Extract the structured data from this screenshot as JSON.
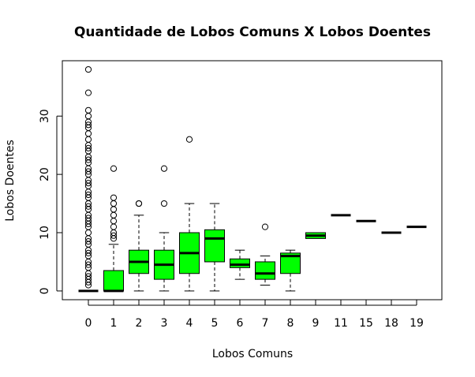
{
  "chart_data": {
    "type": "boxplot",
    "title": "Quantidade de Lobos Comuns X Lobos Doentes",
    "xlabel": "Lobos Comuns",
    "ylabel": "Lobos Doentes",
    "categories": [
      "0",
      "1",
      "2",
      "3",
      "4",
      "5",
      "6",
      "7",
      "8",
      "9",
      "11",
      "15",
      "18",
      "19"
    ],
    "ylim": [
      -1.5,
      39.5
    ],
    "yticks": [
      0,
      10,
      20,
      30
    ],
    "box_color": "#00ff00",
    "boxes": [
      {
        "category": "0",
        "q1": 0,
        "median": 0,
        "q3": 0,
        "whisker_low": 0,
        "whisker_high": 0,
        "outliers": [
          1,
          1.5,
          2,
          2.5,
          3,
          4,
          4.5,
          5,
          6,
          6.5,
          7,
          8,
          8.5,
          9,
          10,
          11,
          11.5,
          12,
          12.5,
          13,
          14,
          14.5,
          15,
          16,
          16.5,
          17,
          18,
          18.5,
          19,
          20,
          20.5,
          21,
          22,
          22.5,
          23,
          24,
          24.5,
          25,
          26,
          27,
          28,
          28.5,
          29,
          30,
          31,
          34,
          38
        ]
      },
      {
        "category": "1",
        "q1": 0,
        "median": 0,
        "q3": 3.5,
        "whisker_low": 0,
        "whisker_high": 8,
        "outliers": [
          9,
          9.5,
          10,
          11,
          12,
          13,
          14,
          15,
          16,
          21
        ]
      },
      {
        "category": "2",
        "q1": 3,
        "median": 5,
        "q3": 7,
        "whisker_low": 0,
        "whisker_high": 13,
        "outliers": [
          15,
          15
        ]
      },
      {
        "category": "3",
        "q1": 2,
        "median": 4.5,
        "q3": 7,
        "whisker_low": 0,
        "whisker_high": 10,
        "outliers": [
          15,
          21
        ]
      },
      {
        "category": "4",
        "q1": 3,
        "median": 6.5,
        "q3": 10,
        "whisker_low": 0,
        "whisker_high": 15,
        "outliers": [
          26
        ]
      },
      {
        "category": "5",
        "q1": 5,
        "median": 9,
        "q3": 10.5,
        "whisker_low": 0,
        "whisker_high": 15,
        "outliers": []
      },
      {
        "category": "6",
        "q1": 4,
        "median": 4.5,
        "q3": 5.5,
        "whisker_low": 2,
        "whisker_high": 7,
        "outliers": []
      },
      {
        "category": "7",
        "q1": 2,
        "median": 3,
        "q3": 5,
        "whisker_low": 1,
        "whisker_high": 6,
        "outliers": [
          11
        ]
      },
      {
        "category": "8",
        "q1": 3,
        "median": 6,
        "q3": 6.5,
        "whisker_low": 0,
        "whisker_high": 7,
        "outliers": []
      },
      {
        "category": "9",
        "q1": 9,
        "median": 9.5,
        "q3": 10,
        "whisker_low": 9,
        "whisker_high": 10,
        "outliers": []
      },
      {
        "category": "11",
        "q1": 13,
        "median": 13,
        "q3": 13,
        "whisker_low": 13,
        "whisker_high": 13,
        "outliers": []
      },
      {
        "category": "15",
        "q1": 12,
        "median": 12,
        "q3": 12,
        "whisker_low": 12,
        "whisker_high": 12,
        "outliers": []
      },
      {
        "category": "18",
        "q1": 10,
        "median": 10,
        "q3": 10,
        "whisker_low": 10,
        "whisker_high": 10,
        "outliers": []
      },
      {
        "category": "19",
        "q1": 11,
        "median": 11,
        "q3": 11,
        "whisker_low": 11,
        "whisker_high": 11,
        "outliers": []
      }
    ]
  }
}
